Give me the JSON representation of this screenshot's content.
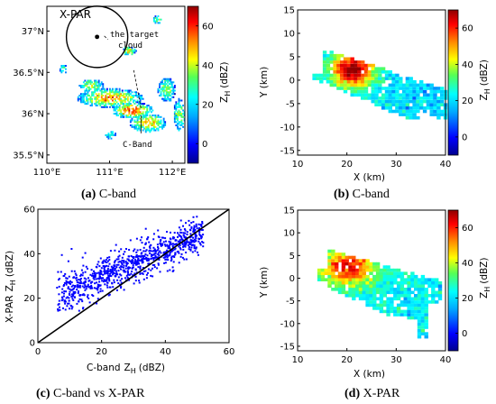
{
  "colorbar": {
    "label": "Z",
    "label_sub": "H",
    "unit": "(dBZ)",
    "ticks": [
      "60",
      "40",
      "20",
      "0"
    ],
    "range": [
      -10,
      70
    ],
    "colormap": [
      "#00008f",
      "#0000ff",
      "#00aaff",
      "#00ffff",
      "#55ff55",
      "#ffff00",
      "#ff8800",
      "#ff0000",
      "#8f0000"
    ]
  },
  "chart_data": [
    {
      "id": "a",
      "type": "heatmap",
      "caption_letter": "(a)",
      "caption_text": " C-band",
      "x_ticks": [
        "110°E",
        "111°E",
        "112°E"
      ],
      "y_ticks": [
        "37°N",
        "36.5°N",
        "36°N",
        "35.5°N"
      ],
      "xlim": [
        110,
        112.2
      ],
      "ylim": [
        35.4,
        37.3
      ],
      "annotations": {
        "xpar": "X-PAR",
        "target1": "the target",
        "target2": "cloud",
        "cband": "C-Band"
      },
      "xpar_site": [
        110.8,
        36.93
      ],
      "cband_site": [
        111.5,
        35.98
      ]
    },
    {
      "id": "b",
      "type": "heatmap",
      "caption_letter": "(b)",
      "caption_text": " C-band",
      "xlabel": "X (km)",
      "ylabel": "Y (km)",
      "x_ticks": [
        "10",
        "20",
        "30",
        "40"
      ],
      "y_ticks": [
        "15",
        "10",
        "5",
        "0",
        "-5",
        "-10",
        "-15"
      ],
      "xlim": [
        10,
        40
      ],
      "ylim": [
        -16,
        15
      ]
    },
    {
      "id": "c",
      "type": "scatter",
      "caption_letter": "(c)",
      "caption_text": " C-band vs X-PAR",
      "xlabel": "C-band",
      "xlabel_sym": "Z",
      "xlabel_sub": "H",
      "xlabel_unit": "(dBZ)",
      "ylabel": "X-PAR",
      "ylabel_sym": "Z",
      "ylabel_sub": "H",
      "ylabel_unit": "(dBZ)",
      "x_ticks": [
        "0",
        "20",
        "40",
        "60"
      ],
      "y_ticks": [
        "60",
        "40",
        "20",
        "0"
      ],
      "xlim": [
        0,
        60
      ],
      "ylim": [
        0,
        60
      ],
      "reference_line": [
        [
          0,
          0
        ],
        [
          60,
          60
        ]
      ],
      "cluster": {
        "x_range": [
          6,
          52
        ],
        "slope": 0.62,
        "intercept": 17,
        "spread": 4.2,
        "n": 900
      }
    },
    {
      "id": "d",
      "type": "heatmap",
      "caption_letter": "(d)",
      "caption_text": " X-PAR",
      "xlabel": "X (km)",
      "ylabel": "Y (km)",
      "x_ticks": [
        "10",
        "20",
        "30",
        "40"
      ],
      "y_ticks": [
        "15",
        "10",
        "5",
        "0",
        "-5",
        "-10",
        "-15"
      ],
      "xlim": [
        10,
        40
      ],
      "ylim": [
        -16,
        15
      ]
    }
  ]
}
